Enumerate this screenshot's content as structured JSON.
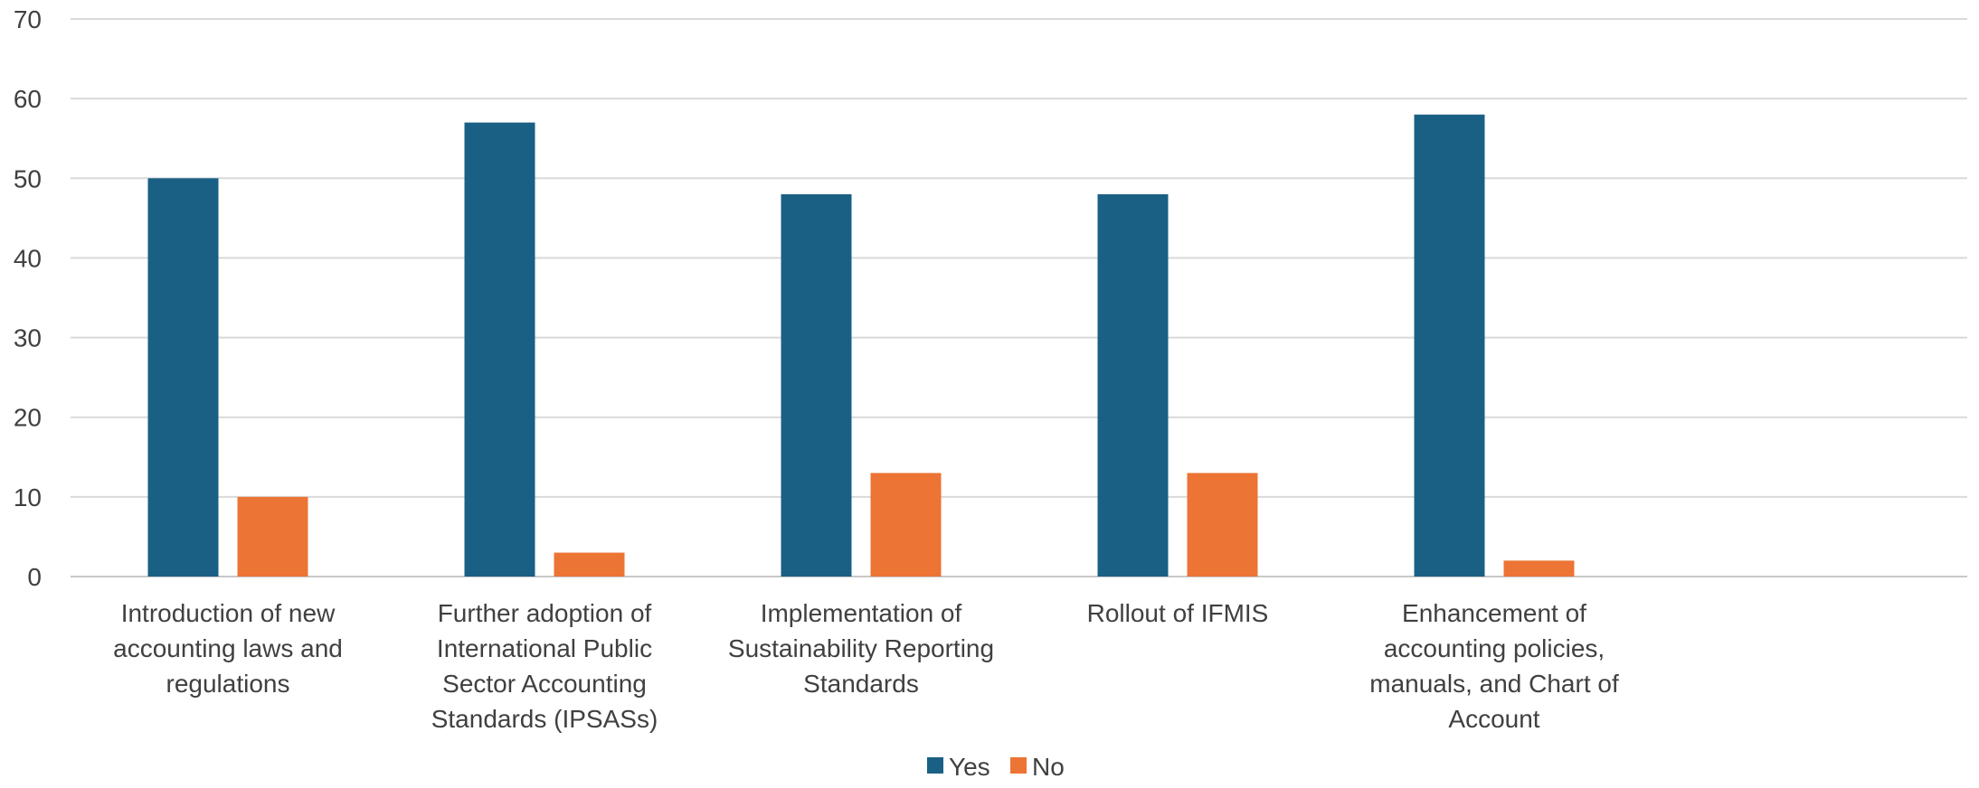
{
  "chart_data": {
    "type": "bar",
    "title": "",
    "xlabel": "",
    "ylabel": "",
    "categories": [
      "Introduction of new accounting laws and regulations",
      "Further adoption of International Public Sector Accounting Standards (IPSASs)",
      "Implementation of Sustainability Reporting Standards",
      "Rollout of IFMIS",
      "Enhancement of accounting policies, manuals, and Chart of Account"
    ],
    "category_lines": [
      [
        "Introduction of new",
        "accounting laws and",
        "regulations"
      ],
      [
        "Further adoption of",
        "International Public",
        "Sector Accounting",
        "Standards (IPSASs)"
      ],
      [
        "Implementation of",
        "Sustainability Reporting",
        "Standards"
      ],
      [
        "Rollout of IFMIS"
      ],
      [
        "Enhancement of",
        "accounting policies,",
        "manuals, and Chart of",
        "Account"
      ]
    ],
    "series": [
      {
        "name": "Yes",
        "color": "#1a6085",
        "values": [
          50,
          57,
          48,
          48,
          58
        ]
      },
      {
        "name": "No",
        "color": "#ec7434",
        "values": [
          10,
          3,
          13,
          13,
          2
        ]
      }
    ],
    "ylim": [
      0,
      70
    ],
    "yticks": [
      0,
      10,
      20,
      30,
      40,
      50,
      60,
      70
    ],
    "grid": true,
    "legend": "bottom-center"
  }
}
